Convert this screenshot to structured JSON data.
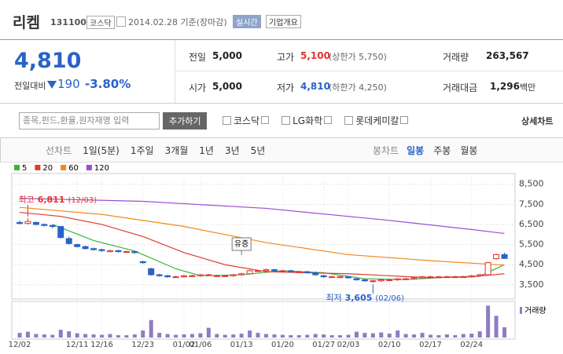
{
  "header": {
    "name": "리켐",
    "code": "131100",
    "market": "코스닥",
    "date": "2014.02.28 기준(장마감)",
    "realtime": "실시간",
    "overview": "기업개요"
  },
  "quote": {
    "price": "4,810",
    "change_label": "전일대비",
    "change": "190",
    "change_pct": "-3.80%",
    "items": [
      {
        "label": "전일",
        "value": "5,000"
      },
      {
        "label": "시가",
        "value": "5,000"
      },
      {
        "label": "고가",
        "value": "5,100",
        "note": "(상한가 5,750)"
      },
      {
        "label": "저가",
        "value": "4,810",
        "note": "(하한가 4,250)"
      },
      {
        "label": "거래량",
        "value": "263,567"
      },
      {
        "label": "거래대금",
        "value": "1,296",
        "unit": "백만"
      }
    ]
  },
  "search": {
    "placeholder": "종목,펀드,환율,원자재명 입력",
    "button": "추가하기",
    "compare": [
      "코스닥",
      "LG화학",
      "롯데케미칼"
    ],
    "detail": "상세차트"
  },
  "tabs": {
    "line_label": "선차트",
    "line": [
      "1일(5분)",
      "1주일",
      "3개월",
      "1년",
      "3년",
      "5년"
    ],
    "candle_label": "봉차트",
    "candle": [
      "일봉",
      "주봉",
      "월봉"
    ]
  },
  "chart_data": {
    "type": "candlestick",
    "categories": [
      "12/02",
      null,
      null,
      null,
      null,
      null,
      null,
      "12/11",
      null,
      null,
      "12/16",
      null,
      null,
      null,
      null,
      "12/23",
      null,
      null,
      null,
      null,
      "01/02",
      null,
      "01/06",
      null,
      null,
      null,
      null,
      "01/13",
      null,
      null,
      null,
      null,
      "01/20",
      null,
      null,
      null,
      null,
      "01/27",
      null,
      null,
      "02/03",
      null,
      null,
      null,
      null,
      "02/10",
      null,
      null,
      null,
      null,
      "02/17",
      null,
      null,
      null,
      null,
      "02/24",
      null,
      null,
      null,
      null
    ],
    "open": [
      6600,
      6550,
      6600,
      6500,
      6450,
      6400,
      5800,
      5500,
      5400,
      5300,
      5250,
      5150,
      5200,
      5150,
      5150,
      4650,
      4300,
      4000,
      3950,
      3900,
      3900,
      3950,
      3950,
      4000,
      3950,
      3950,
      3950,
      4000,
      4050,
      4200,
      4200,
      4250,
      4200,
      4200,
      4150,
      4150,
      4100,
      3950,
      3900,
      3900,
      3900,
      3800,
      3750,
      3700,
      3700,
      3750,
      3750,
      3800,
      3800,
      3850,
      3900,
      3900,
      3900,
      3900,
      3900,
      3900,
      3950,
      4000,
      4800,
      5000
    ],
    "high": [
      6700,
      6811,
      6650,
      6550,
      6500,
      6400,
      5900,
      5550,
      5450,
      5350,
      5300,
      5250,
      5250,
      5200,
      5200,
      4700,
      4350,
      4050,
      4000,
      3950,
      4000,
      4000,
      4050,
      4050,
      4000,
      4000,
      4050,
      4100,
      4250,
      4250,
      4300,
      4300,
      4250,
      4250,
      4200,
      4200,
      4150,
      4000,
      3950,
      3950,
      3950,
      3850,
      3800,
      3750,
      3800,
      3800,
      3850,
      3850,
      3900,
      3950,
      3950,
      3950,
      3950,
      3950,
      3950,
      4000,
      4050,
      4650,
      5050,
      5100
    ],
    "low": [
      6500,
      6500,
      6450,
      6400,
      6300,
      5800,
      5500,
      5350,
      5250,
      5200,
      5150,
      5100,
      5100,
      5100,
      5050,
      4550,
      3950,
      3900,
      3850,
      3850,
      3850,
      3900,
      3900,
      3950,
      3900,
      3900,
      3900,
      3950,
      4000,
      4150,
      4150,
      4150,
      4150,
      4100,
      4100,
      4050,
      3950,
      3850,
      3850,
      3850,
      3800,
      3700,
      3650,
      3605,
      3650,
      3700,
      3700,
      3750,
      3750,
      3800,
      3850,
      3850,
      3850,
      3850,
      3850,
      3850,
      3900,
      4000,
      4750,
      4810
    ],
    "close": [
      6550,
      6650,
      6500,
      6450,
      6400,
      5850,
      5550,
      5400,
      5300,
      5250,
      5200,
      5200,
      5150,
      5150,
      5100,
      4600,
      4000,
      3950,
      3900,
      3900,
      3950,
      3950,
      4000,
      4000,
      3950,
      3950,
      4000,
      4050,
      4200,
      4200,
      4250,
      4200,
      4200,
      4150,
      4150,
      4100,
      4000,
      3900,
      3900,
      3900,
      3850,
      3750,
      3700,
      3700,
      3750,
      3750,
      3800,
      3800,
      3850,
      3900,
      3900,
      3900,
      3900,
      3900,
      3900,
      3950,
      4000,
      4600,
      5000,
      4810
    ],
    "up_color": "#e4312e",
    "down_color": "#2a62c9",
    "ylim": [
      3300,
      8800
    ],
    "yticks": [
      {
        "value": 8500,
        "label": "8,500"
      },
      {
        "value": 7500,
        "label": "7,500"
      },
      {
        "value": 6500,
        "label": "6,500"
      },
      {
        "value": 5500,
        "label": "5,500"
      },
      {
        "value": 4500,
        "label": "4,500"
      },
      {
        "value": 3500,
        "label": "3,500"
      }
    ],
    "grid": true,
    "ma": [
      {
        "name": "5",
        "color": "#3bb33b",
        "x": [
          4,
          9,
          14,
          19,
          22,
          27,
          32,
          37,
          42,
          47,
          52,
          56,
          59
        ],
        "values": [
          6500,
          5700,
          5180,
          4300,
          3950,
          4000,
          4200,
          4100,
          3800,
          3760,
          3880,
          3930,
          4500
        ]
      },
      {
        "name": "20",
        "color": "#e03c31",
        "x": [
          0,
          5,
          10,
          15,
          20,
          25,
          30,
          35,
          40,
          45,
          50,
          55,
          59
        ],
        "values": [
          7100,
          6900,
          6500,
          5900,
          5100,
          4500,
          4150,
          4100,
          4050,
          3950,
          3850,
          3900,
          4050
        ]
      },
      {
        "name": "60",
        "color": "#f08a1c",
        "x": [
          0,
          10,
          20,
          30,
          40,
          50,
          59
        ],
        "values": [
          7350,
          7000,
          6400,
          5600,
          5000,
          4700,
          4480
        ]
      },
      {
        "name": "120",
        "color": "#9b4fd1",
        "x": [
          0,
          15,
          30,
          45,
          55,
          59
        ],
        "values": [
          7800,
          7650,
          7300,
          6700,
          6250,
          6050
        ]
      }
    ],
    "volume": {
      "name": "거래량",
      "color": "#8e7cc3",
      "ylim": [
        0,
        850000
      ],
      "values": [
        120000,
        150000,
        90000,
        80000,
        70000,
        200000,
        160000,
        110000,
        90000,
        80000,
        70000,
        90000,
        60000,
        60000,
        80000,
        180000,
        450000,
        120000,
        90000,
        70000,
        80000,
        90000,
        110000,
        250000,
        90000,
        70000,
        80000,
        100000,
        180000,
        120000,
        90000,
        80000,
        70000,
        60000,
        60000,
        70000,
        90000,
        80000,
        60000,
        60000,
        70000,
        150000,
        120000,
        110000,
        130000,
        100000,
        180000,
        90000,
        80000,
        120000,
        70000,
        60000,
        80000,
        60000,
        90000,
        100000,
        160000,
        820000,
        560000,
        263567
      ]
    },
    "annotations": [
      {
        "text": "최고",
        "value": 6811,
        "value_label": "6,811",
        "date": "(12/03)",
        "x": 1,
        "color": "#e4312e"
      },
      {
        "text": "최저",
        "value": 3605,
        "value_label": "3,605",
        "date": "(02/06)",
        "x": 43,
        "color": "#2a62c9"
      }
    ],
    "events": [
      {
        "text": "유증",
        "x": 27
      }
    ]
  }
}
